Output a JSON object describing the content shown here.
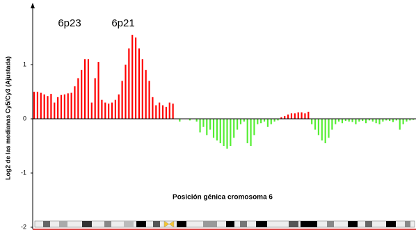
{
  "chart_data": {
    "type": "bar",
    "y_label": "Log2 de las medianas Cy5/Cy3 (Ajustada)",
    "x_label": "Posición génica cromosoma 6",
    "annotations": [
      "6p23",
      "6p21"
    ],
    "ylim": [
      -2,
      2
    ],
    "yticks": [
      -2,
      -1,
      0,
      1
    ],
    "positive_color": "#ff0000",
    "negative_color": "#55ee33",
    "values": [
      0.5,
      0.5,
      0.48,
      0.45,
      0.42,
      0.46,
      0.3,
      0.4,
      0.44,
      0.45,
      0.47,
      0.48,
      0.6,
      0.75,
      0.9,
      1.1,
      1.1,
      0.3,
      0.75,
      1.05,
      0.35,
      0.3,
      0.28,
      0.3,
      0.35,
      0.45,
      0.7,
      1.0,
      1.3,
      1.55,
      1.5,
      1.3,
      1.1,
      0.9,
      0.7,
      0.4,
      0.25,
      0.3,
      0.25,
      0.22,
      0.3,
      0.28,
      0,
      -0.05,
      0,
      0,
      -0.03,
      0,
      -0.05,
      -0.25,
      -0.15,
      -0.3,
      -0.2,
      -0.35,
      -0.4,
      -0.45,
      -0.5,
      -0.55,
      -0.5,
      -0.35,
      -0.2,
      -0.1,
      -0.05,
      -0.45,
      -0.5,
      -0.3,
      -0.1,
      -0.08,
      -0.05,
      -0.15,
      -0.1,
      -0.05,
      -0.03,
      0.03,
      0.05,
      0.08,
      0.1,
      0.1,
      0.12,
      0.12,
      0.1,
      0.13,
      -0.1,
      -0.2,
      -0.3,
      -0.4,
      -0.45,
      -0.35,
      -0.2,
      -0.1,
      -0.05,
      -0.08,
      -0.04,
      -0.05,
      -0.06,
      -0.1,
      -0.05,
      -0.04,
      -0.08,
      -0.03,
      -0.05,
      -0.08,
      -0.1,
      -0.05,
      -0.03,
      -0.04,
      -0.06,
      -0.03,
      -0.2,
      -0.1,
      -0.05,
      -0.03,
      -0.02
    ]
  }
}
